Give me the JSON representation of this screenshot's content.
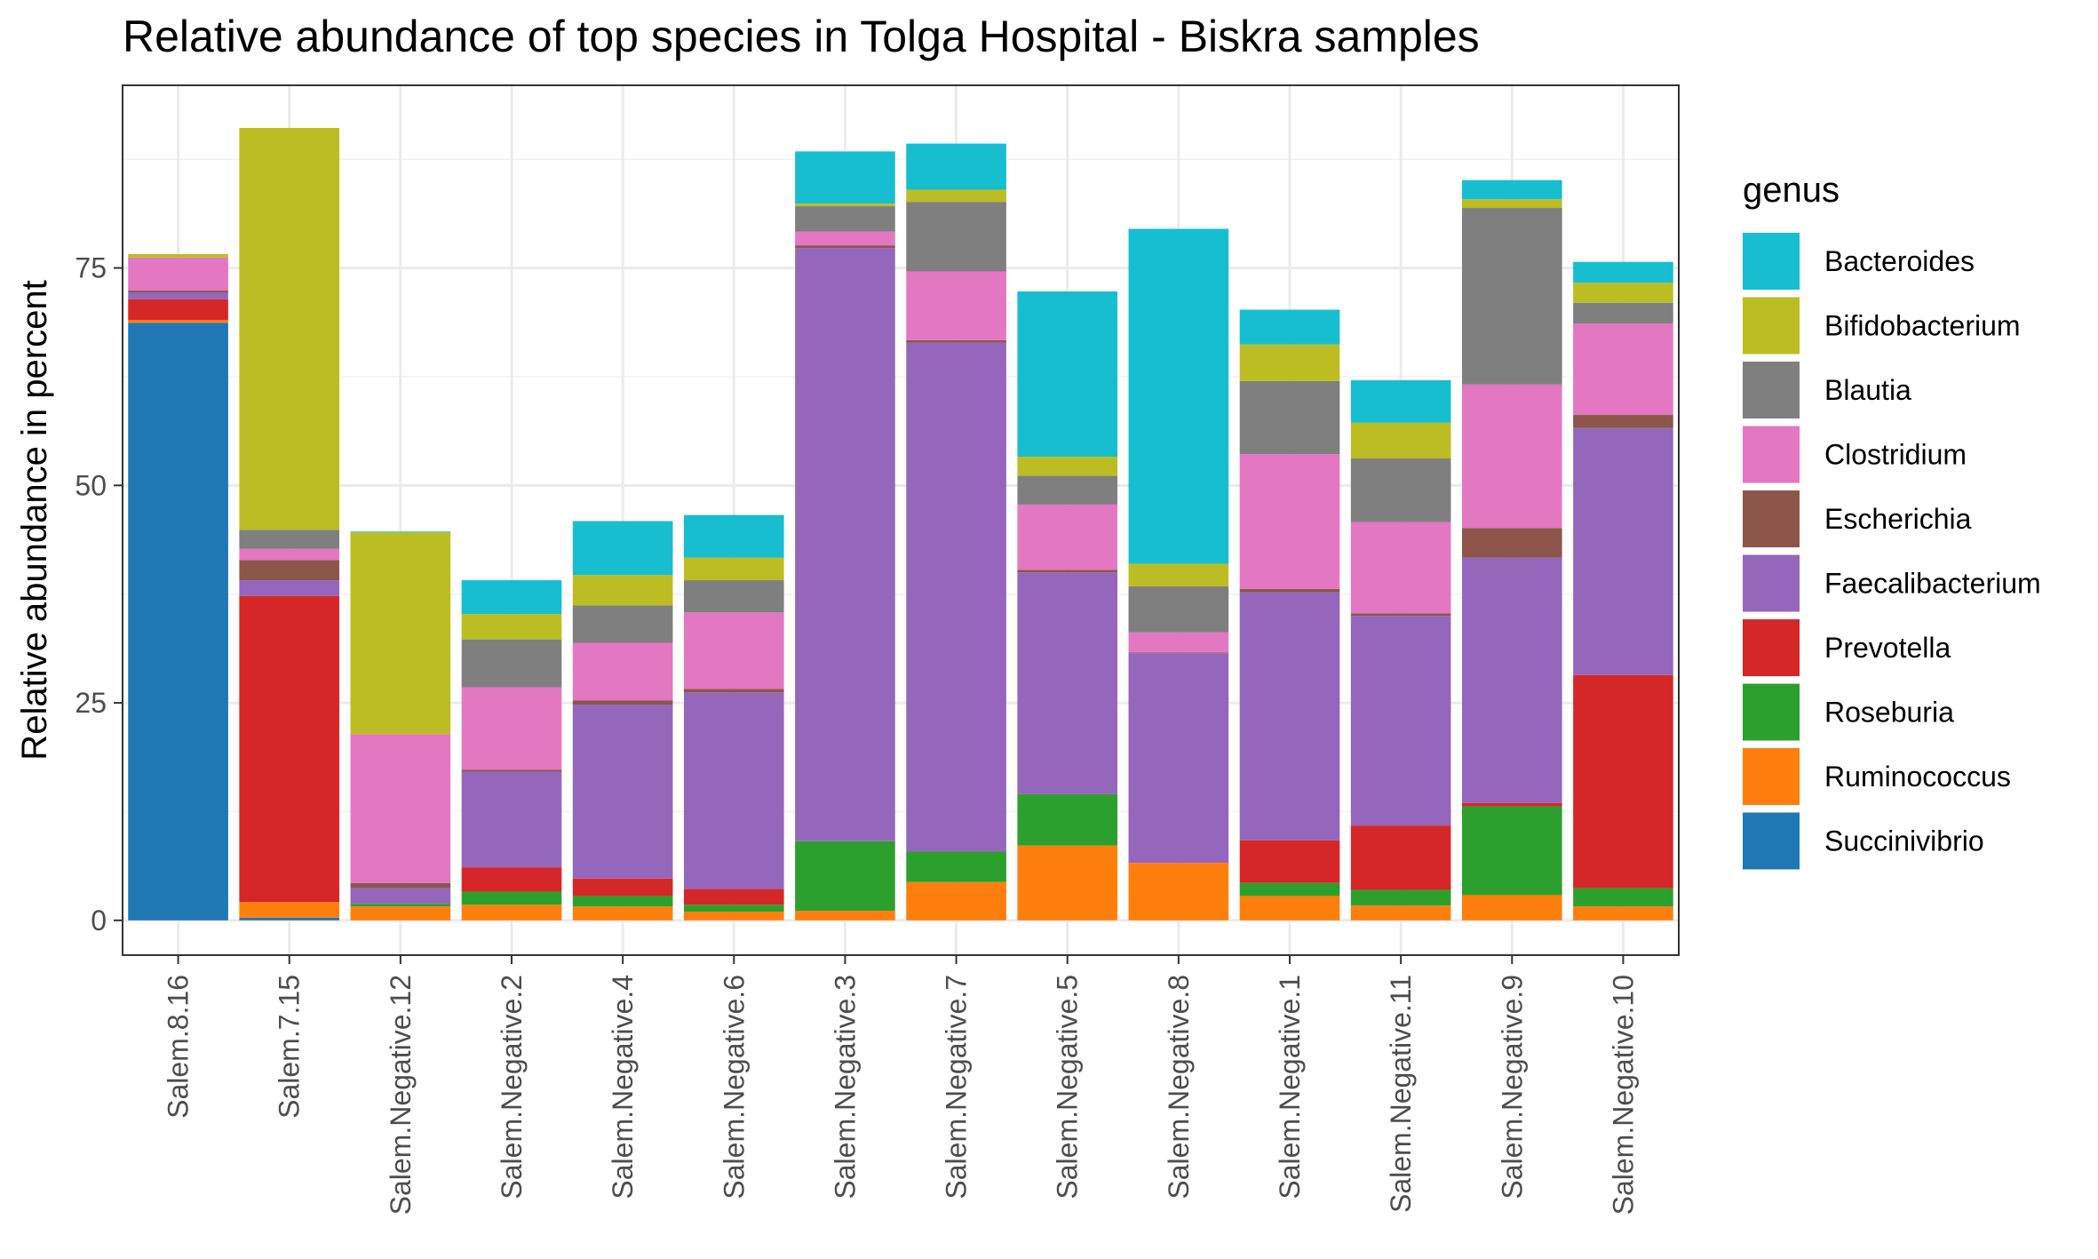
{
  "chart_data": {
    "type": "bar",
    "stacked": true,
    "title": "Relative abundance of top species in Tolga Hospital - Biskra  samples",
    "xlabel": "",
    "ylabel": "Relative abundance in percent",
    "ylim": [
      -4,
      96
    ],
    "yticks": [
      0,
      25,
      50,
      75
    ],
    "grid": true,
    "legend_title": "genus",
    "legend_position": "right",
    "categories": [
      "Salem.8.16",
      "Salem.7.15",
      "Salem.Negative.12",
      "Salem.Negative.2",
      "Salem.Negative.4",
      "Salem.Negative.6",
      "Salem.Negative.3",
      "Salem.Negative.7",
      "Salem.Negative.5",
      "Salem.Negative.8",
      "Salem.Negative.1",
      "Salem.Negative.11",
      "Salem.Negative.9",
      "Salem.Negative.10"
    ],
    "stack_order": [
      "Succinivibrio",
      "Ruminococcus",
      "Roseburia",
      "Prevotella",
      "Faecalibacterium",
      "Escherichia",
      "Clostridium",
      "Blautia",
      "Bifidobacterium",
      "Bacteroides"
    ],
    "series": [
      {
        "name": "Bacteroides",
        "color": "#17becf",
        "values": [
          0,
          0,
          0.1,
          3.9,
          6.2,
          4.9,
          6.0,
          5.3,
          19.0,
          38.5,
          4.0,
          4.9,
          2.2,
          2.4
        ]
      },
      {
        "name": "Bifidobacterium",
        "color": "#bcbd22",
        "values": [
          0.4,
          46.2,
          23.2,
          2.9,
          3.5,
          2.6,
          0.3,
          1.4,
          2.2,
          2.6,
          4.2,
          4.1,
          1.0,
          2.3
        ]
      },
      {
        "name": "Blautia",
        "color": "#7f7f7f",
        "values": [
          0,
          2.2,
          0,
          5.5,
          4.3,
          3.7,
          2.9,
          8.0,
          3.3,
          5.3,
          8.4,
          7.3,
          20.3,
          2.4
        ]
      },
      {
        "name": "Clostridium",
        "color": "#e377c2",
        "values": [
          3.8,
          1.3,
          17.1,
          9.5,
          6.6,
          8.8,
          1.6,
          7.9,
          7.5,
          2.3,
          15.5,
          10.5,
          16.5,
          10.5
        ]
      },
      {
        "name": "Escherichia",
        "color": "#8c564b",
        "values": [
          0.2,
          2.3,
          0.6,
          0.2,
          0.5,
          0.4,
          0.3,
          0.3,
          0.3,
          0.1,
          0.4,
          0.3,
          3.4,
          1.5
        ]
      },
      {
        "name": "Faecalibacterium",
        "color": "#9467bd",
        "values": [
          0.8,
          1.8,
          1.8,
          11.0,
          20.0,
          22.6,
          68.2,
          58.5,
          25.5,
          24.1,
          28.5,
          24.1,
          28.2,
          28.4
        ]
      },
      {
        "name": "Prevotella",
        "color": "#d62728",
        "values": [
          2.4,
          35.2,
          0,
          2.8,
          2.0,
          1.8,
          0,
          0,
          0,
          0,
          4.9,
          7.4,
          0.4,
          24.5
        ]
      },
      {
        "name": "Roseburia",
        "color": "#2ca02c",
        "values": [
          0,
          0,
          0.3,
          1.5,
          1.2,
          0.8,
          8.0,
          3.5,
          5.9,
          0,
          1.5,
          1.8,
          10.2,
          2.1
        ]
      },
      {
        "name": "Ruminococcus",
        "color": "#ff7f0e",
        "values": [
          0.3,
          1.8,
          1.6,
          1.8,
          1.6,
          1.0,
          1.1,
          4.4,
          8.6,
          6.6,
          2.8,
          1.7,
          2.9,
          1.6
        ]
      },
      {
        "name": "Succinivibrio",
        "color": "#1f77b4",
        "values": [
          68.7,
          0.3,
          0,
          0,
          0,
          0,
          0,
          0,
          0,
          0,
          0,
          0,
          0,
          0
        ]
      }
    ]
  }
}
